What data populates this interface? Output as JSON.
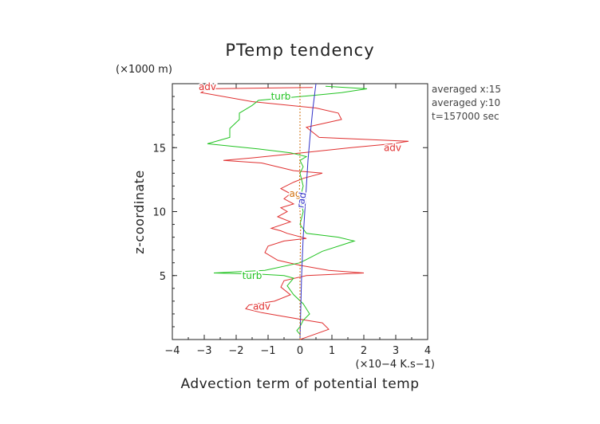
{
  "chart_data": {
    "type": "line",
    "title": "PTemp tendency",
    "xlabel": "Advection term of potential temp",
    "ylabel": "z-coordinate",
    "x_unit": "(×10−4 K.s−1)",
    "y_unit": "(×1000 m)",
    "xlim": [
      -4,
      4
    ],
    "ylim": [
      0,
      20
    ],
    "x_ticks": [
      "−4",
      "−3",
      "−2",
      "−1",
      "0",
      "1",
      "2",
      "3",
      "4"
    ],
    "y_ticks": [
      "5",
      "10",
      "15"
    ],
    "info_lines": [
      "averaged  x:15",
      "averaged  y:10",
      "t=157000 sec"
    ],
    "series": [
      {
        "name": "adv",
        "color": "#e03030",
        "x": [
          0,
          0.9,
          0.7,
          0.2,
          -0.5,
          -1.2,
          -1.7,
          -1.6,
          -0.8,
          -0.3,
          -0.6,
          -0.5,
          0.2,
          1.1,
          2.0,
          0.9,
          0,
          -0.7,
          -1.1,
          -1.0,
          -0.5,
          0.2,
          -0.4,
          -0.6,
          -0.9,
          -0.3,
          -0.7,
          -0.4,
          -0.6,
          -0.2,
          -0.5,
          -0.3,
          -0.6,
          -0.2,
          0.1,
          0.7,
          -0.2,
          -1.2,
          -2.4,
          -1.5,
          -0.3,
          1.6,
          2.9,
          3.4,
          0.6,
          0.2,
          1.3,
          1.2,
          0.5,
          -1.5,
          -3.1,
          -2.9,
          0.4
        ],
        "y": [
          0,
          0.8,
          1.3,
          1.5,
          1.8,
          2.1,
          2.4,
          2.7,
          3.0,
          3.5,
          4.1,
          4.6,
          5.0,
          5.1,
          5.2,
          5.4,
          5.8,
          6.2,
          6.8,
          7.3,
          7.7,
          7.9,
          8.3,
          8.5,
          8.7,
          9.2,
          9.6,
          10.0,
          10.3,
          10.6,
          11.0,
          11.4,
          11.8,
          12.3,
          12.6,
          13.0,
          13.2,
          13.8,
          14.0,
          14.2,
          14.5,
          15.0,
          15.3,
          15.5,
          15.8,
          16.6,
          17.2,
          17.7,
          18.1,
          18.6,
          19.3,
          19.6,
          19.7
        ]
      },
      {
        "name": "turb",
        "color": "#22c322",
        "x": [
          0,
          0,
          -0.1,
          0,
          0.1,
          0.3,
          0.1,
          -0.2,
          -0.4,
          -0.2,
          -0.5,
          -1.2,
          -2.7,
          -1.1,
          0,
          0.7,
          1.7,
          1.2,
          0.2,
          0,
          0.1,
          0,
          0.1,
          0,
          0.1,
          0,
          0.2,
          -0.3,
          -1.3,
          -2.9,
          -2.2,
          -2.2,
          -1.9,
          -1.9,
          -1.5,
          -1.3,
          0.5,
          1.3,
          2.1,
          0.8
        ],
        "y": [
          0,
          0.4,
          0.7,
          1.0,
          1.5,
          2.0,
          2.8,
          3.5,
          4.2,
          4.8,
          5.0,
          5.1,
          5.2,
          5.4,
          6.0,
          6.9,
          7.7,
          8.0,
          8.3,
          9.0,
          10.0,
          11.0,
          12.0,
          13.0,
          13.5,
          14.0,
          14.3,
          14.6,
          14.9,
          15.3,
          15.8,
          16.5,
          17.2,
          17.7,
          18.3,
          18.7,
          19.1,
          19.3,
          19.6,
          19.8
        ]
      },
      {
        "name": "rad",
        "color": "#3030c8",
        "x": [
          0,
          0.05,
          0.1,
          0.15,
          0.2,
          0.25,
          0.32,
          0.4,
          0.5
        ],
        "y": [
          0,
          5,
          8,
          10,
          12,
          14,
          16,
          18,
          20
        ]
      },
      {
        "name": "ag",
        "color": "#d07010",
        "x": [
          0,
          0,
          0.02,
          0,
          -0.02,
          0,
          0
        ],
        "y": [
          0,
          5,
          9,
          10,
          11,
          15,
          20
        ]
      }
    ],
    "line_labels": [
      {
        "text": "adv",
        "series": "adv",
        "x": -2.9,
        "y": 19.75
      },
      {
        "text": "turb",
        "series": "turb",
        "x": -0.6,
        "y": 19.0
      },
      {
        "text": "adv",
        "series": "adv",
        "x": 2.9,
        "y": 15.0
      },
      {
        "text": "ag",
        "series": "ag",
        "x": -0.15,
        "y": 11.4
      },
      {
        "text": "rad",
        "series": "rad",
        "x": 0.05,
        "y": 10.9
      },
      {
        "text": "turb",
        "series": "turb",
        "x": -1.5,
        "y": 5.0
      },
      {
        "text": "adv",
        "series": "adv",
        "x": -1.2,
        "y": 2.6
      }
    ]
  }
}
